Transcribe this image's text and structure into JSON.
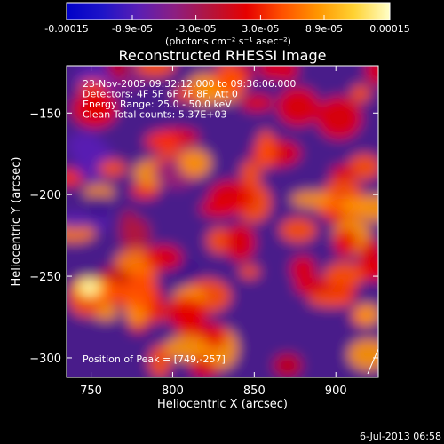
{
  "colorbar": {
    "tick_labels": [
      "-0.00015",
      "-8.9e-05",
      "-3.0e-05",
      "3.0e-05",
      "8.9e-05",
      "0.00015"
    ],
    "unit_label": "(photons cm⁻² s⁻¹ asec⁻²)",
    "range": [
      -0.00015,
      0.00015
    ],
    "colors": [
      "#0000c8",
      "#1e14c8",
      "#5a1eb4",
      "#8c1e82",
      "#b4143c",
      "#e60000",
      "#ff5000",
      "#ff9600",
      "#ffd232",
      "#ffffc8"
    ]
  },
  "chart_data": {
    "type": "heatmap",
    "title": "Reconstructed RHESSI Image",
    "xlabel": "Heliocentric X (arcsec)",
    "ylabel": "Heliocentric Y (arcsec)",
    "xlim": [
      735,
      926
    ],
    "ylim": [
      -312,
      -121
    ],
    "xticks": [
      750,
      800,
      850,
      900
    ],
    "yticks": [
      -150,
      -200,
      -250,
      -300
    ],
    "peak": [
      749,
      -257
    ],
    "annotations": [
      "23-Nov-2005 09:32:12.000 to 09:36:06.000",
      "Detectors: 4F 5F 6F 7F 8F, Att 0",
      "Energy Range: 25.0 - 50.0 keV",
      "Clean     Total counts: 5.37E+03"
    ],
    "peak_label": "Position of Peak = [749,-257]"
  },
  "footer": {
    "timestamp": "6-Jul-2013 06:58"
  }
}
